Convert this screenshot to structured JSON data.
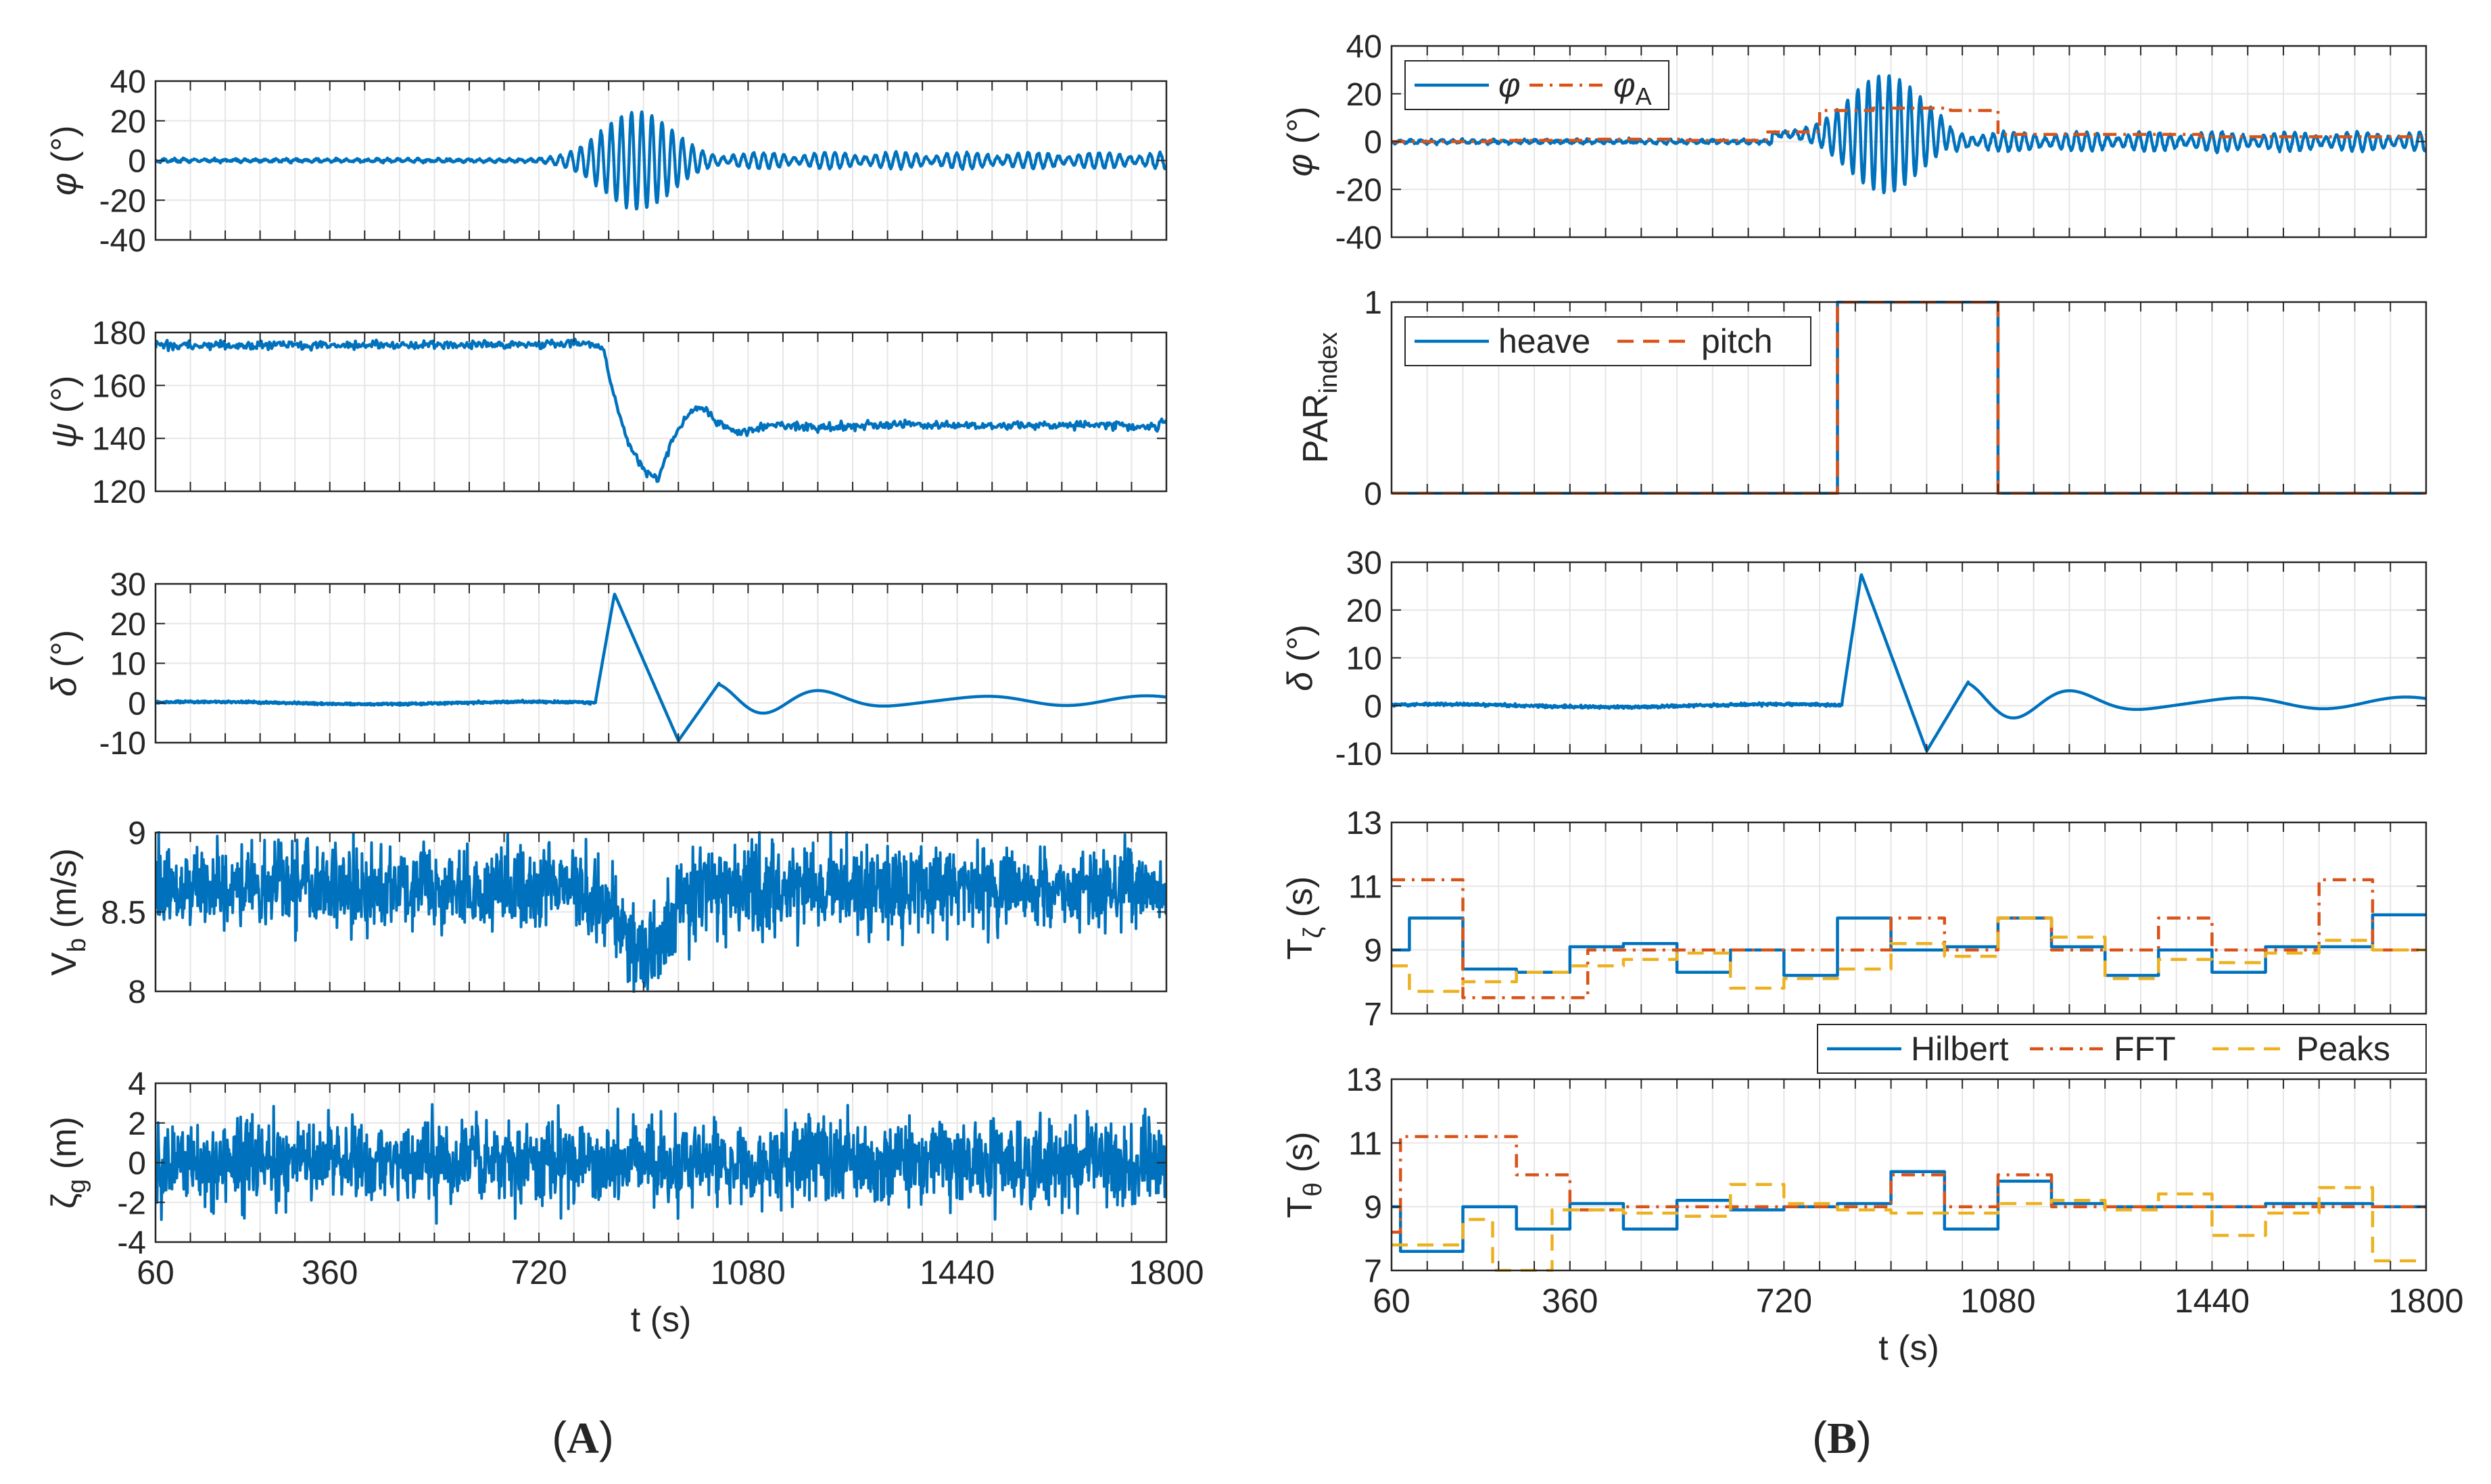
{
  "figure": {
    "panel_labels": {
      "left": "A",
      "right": "B"
    },
    "colors": {
      "blue": "#0072BD",
      "orange": "#D95319",
      "yellow": "#EDB120",
      "axis": "#262626",
      "grid": "#e6e6e6"
    }
  },
  "chart_data": [
    {
      "id": "A1",
      "type": "line",
      "ylabel": "φ (°)",
      "xlim": [
        60,
        1800
      ],
      "ylim": [
        -40,
        40
      ],
      "yticks": [
        -40,
        -20,
        0,
        20,
        40
      ],
      "xticks": [
        60,
        360,
        720,
        1080,
        1440,
        1800
      ],
      "show_xtick_labels": false,
      "series": [
        {
          "name": "φ",
          "color": "#0072BD",
          "style": "solid",
          "shape": "roll_left"
        }
      ]
    },
    {
      "id": "A2",
      "type": "line",
      "ylabel": "ψ (°)",
      "xlim": [
        60,
        1800
      ],
      "ylim": [
        120,
        180
      ],
      "yticks": [
        120,
        140,
        160,
        180
      ],
      "xticks": [
        60,
        360,
        720,
        1080,
        1440,
        1800
      ],
      "show_xtick_labels": false,
      "series": [
        {
          "name": "ψ",
          "color": "#0072BD",
          "style": "solid",
          "points": [
            [
              60,
              175
            ],
            [
              760,
              175.5
            ],
            [
              800,
              176
            ],
            [
              830,
              174
            ],
            [
              845,
              160
            ],
            [
              870,
              140
            ],
            [
              900,
              128
            ],
            [
              925,
              124
            ],
            [
              950,
              140
            ],
            [
              980,
              150
            ],
            [
              1000,
              152
            ],
            [
              1030,
              146
            ],
            [
              1060,
              142
            ],
            [
              1080,
              143
            ],
            [
              1120,
              145
            ],
            [
              1200,
              144
            ],
            [
              1300,
              145
            ],
            [
              1400,
              145
            ],
            [
              1500,
              144.5
            ],
            [
              1600,
              145
            ],
            [
              1700,
              145
            ],
            [
              1780,
              144
            ],
            [
              1800,
              147
            ]
          ],
          "noise": 0.8
        }
      ]
    },
    {
      "id": "A3",
      "type": "line",
      "ylabel": "δ (°)",
      "xlim": [
        60,
        1800
      ],
      "ylim": [
        -10,
        30
      ],
      "yticks": [
        -10,
        0,
        10,
        20,
        30
      ],
      "xticks": [
        60,
        360,
        720,
        1080,
        1440,
        1800
      ],
      "show_xtick_labels": false,
      "series": [
        {
          "name": "δ",
          "color": "#0072BD",
          "style": "solid",
          "shape": "rudder"
        }
      ]
    },
    {
      "id": "A4",
      "type": "line",
      "ylabel": "Vb (m/s)",
      "xlim": [
        60,
        1800
      ],
      "ylim": [
        8,
        9
      ],
      "yticks": [
        8,
        8.5,
        9
      ],
      "xticks": [
        60,
        360,
        720,
        1080,
        1440,
        1800
      ],
      "show_xtick_labels": false,
      "series": [
        {
          "name": "Vb",
          "color": "#0072BD",
          "style": "solid",
          "shape": "speed"
        }
      ]
    },
    {
      "id": "A5",
      "type": "line",
      "ylabel": "ζg (m)",
      "xlim": [
        60,
        1800
      ],
      "ylim": [
        -4,
        4
      ],
      "yticks": [
        -4,
        -2,
        0,
        2,
        4
      ],
      "xticks": [
        60,
        360,
        720,
        1080,
        1440,
        1800
      ],
      "show_xtick_labels": true,
      "xtick_labels": [
        "60",
        "360",
        "720",
        "1080",
        "1440",
        "1800"
      ],
      "xlabel": "t (s)",
      "series": [
        {
          "name": "ζg",
          "color": "#0072BD",
          "style": "solid",
          "shape": "waves"
        }
      ]
    },
    {
      "id": "B1",
      "type": "line",
      "ylabel": "φ (°)",
      "xlim": [
        60,
        1800
      ],
      "ylim": [
        -40,
        40
      ],
      "yticks": [
        -40,
        -20,
        0,
        20,
        40
      ],
      "xticks": [
        60,
        360,
        720,
        1080,
        1440,
        1800
      ],
      "show_xtick_labels": false,
      "legend": {
        "position": "top-left",
        "entries": [
          {
            "label": "φ",
            "sub": "",
            "color": "#0072BD",
            "style": "solid"
          },
          {
            "label": "φ",
            "sub": "A",
            "color": "#D95319",
            "style": "dashdot"
          }
        ]
      },
      "series": [
        {
          "name": "φ",
          "color": "#0072BD",
          "style": "solid",
          "shape": "roll_right"
        },
        {
          "name": "φA",
          "color": "#D95319",
          "style": "dashdot",
          "steps": [
            [
              60,
              0
            ],
            [
              225,
              0.5
            ],
            [
              390,
              1
            ],
            [
              555,
              0.5
            ],
            [
              690,
              4
            ],
            [
              780,
              13
            ],
            [
              870,
              14
            ],
            [
              1000,
              13
            ],
            [
              1080,
              3
            ],
            [
              1240,
              3
            ],
            [
              1420,
              2
            ],
            [
              1600,
              2
            ],
            [
              1800,
              3
            ]
          ]
        }
      ]
    },
    {
      "id": "B2",
      "type": "line",
      "ylabel": "PARindex",
      "xlim": [
        60,
        1800
      ],
      "ylim": [
        0,
        1
      ],
      "yticks": [
        0,
        1
      ],
      "xticks": [
        60,
        360,
        720,
        1080,
        1440,
        1800
      ],
      "show_xtick_labels": false,
      "legend": {
        "position": "top-left",
        "entries": [
          {
            "label": "heave",
            "sub": "",
            "color": "#0072BD",
            "style": "solid"
          },
          {
            "label": "pitch",
            "sub": "",
            "color": "#D95319",
            "style": "dashed"
          }
        ]
      },
      "series": [
        {
          "name": "heave",
          "color": "#0072BD",
          "style": "solid",
          "steps": [
            [
              60,
              0
            ],
            [
              810,
              1
            ],
            [
              1080,
              0
            ],
            [
              1800,
              0
            ]
          ]
        },
        {
          "name": "pitch",
          "color": "#D95319",
          "style": "dashed",
          "steps": [
            [
              60,
              0
            ],
            [
              810,
              1
            ],
            [
              1080,
              0
            ],
            [
              1800,
              0
            ]
          ]
        }
      ]
    },
    {
      "id": "B3",
      "type": "line",
      "ylabel": "δ (°)",
      "xlim": [
        60,
        1800
      ],
      "ylim": [
        -10,
        30
      ],
      "yticks": [
        -10,
        0,
        10,
        20,
        30
      ],
      "xticks": [
        60,
        360,
        720,
        1080,
        1440,
        1800
      ],
      "show_xtick_labels": false,
      "series": [
        {
          "name": "δ",
          "color": "#0072BD",
          "style": "solid",
          "shape": "rudder"
        }
      ]
    },
    {
      "id": "B4",
      "type": "line",
      "ylabel": "Tζ (s)",
      "xlim": [
        60,
        1800
      ],
      "ylim": [
        7,
        13
      ],
      "yticks": [
        7,
        9,
        11,
        13
      ],
      "xticks": [
        60,
        360,
        720,
        1080,
        1440,
        1800
      ],
      "show_xtick_labels": false,
      "legend_below": {
        "entries": [
          {
            "label": "Hilbert",
            "color": "#0072BD",
            "style": "solid"
          },
          {
            "label": "FFT",
            "color": "#D95319",
            "style": "dashdot"
          },
          {
            "label": "Peaks",
            "color": "#EDB120",
            "style": "dashed"
          }
        ]
      },
      "series": [
        {
          "name": "Hilbert",
          "color": "#0072BD",
          "style": "solid",
          "steps": [
            [
              60,
              9
            ],
            [
              90,
              10
            ],
            [
              180,
              8.4
            ],
            [
              270,
              8.3
            ],
            [
              360,
              9.1
            ],
            [
              450,
              9.2
            ],
            [
              540,
              8.3
            ],
            [
              630,
              9
            ],
            [
              720,
              8.2
            ],
            [
              810,
              10
            ],
            [
              900,
              9
            ],
            [
              990,
              9.1
            ],
            [
              1080,
              10
            ],
            [
              1170,
              9.1
            ],
            [
              1260,
              8.2
            ],
            [
              1350,
              9
            ],
            [
              1440,
              8.3
            ],
            [
              1530,
              9.1
            ],
            [
              1620,
              9.1
            ],
            [
              1710,
              10.1
            ],
            [
              1800,
              10.1
            ]
          ]
        },
        {
          "name": "FFT",
          "color": "#D95319",
          "style": "dashdot",
          "steps": [
            [
              60,
              11.2
            ],
            [
              180,
              7.5
            ],
            [
              390,
              9
            ],
            [
              630,
              9
            ],
            [
              720,
              9
            ],
            [
              810,
              9
            ],
            [
              900,
              10
            ],
            [
              990,
              9
            ],
            [
              1080,
              10
            ],
            [
              1170,
              9
            ],
            [
              1260,
              9
            ],
            [
              1350,
              10
            ],
            [
              1440,
              9
            ],
            [
              1530,
              9
            ],
            [
              1620,
              11.2
            ],
            [
              1710,
              9
            ],
            [
              1800,
              9
            ]
          ]
        },
        {
          "name": "Peaks",
          "color": "#EDB120",
          "style": "dashed",
          "steps": [
            [
              60,
              8.5
            ],
            [
              90,
              7.7
            ],
            [
              180,
              8
            ],
            [
              270,
              8.3
            ],
            [
              360,
              8.5
            ],
            [
              450,
              8.7
            ],
            [
              540,
              8.9
            ],
            [
              630,
              7.8
            ],
            [
              720,
              8.1
            ],
            [
              810,
              8.4
            ],
            [
              900,
              9.2
            ],
            [
              990,
              8.8
            ],
            [
              1080,
              10
            ],
            [
              1170,
              9.4
            ],
            [
              1260,
              8.1
            ],
            [
              1350,
              8.7
            ],
            [
              1440,
              8.6
            ],
            [
              1530,
              8.9
            ],
            [
              1620,
              9.3
            ],
            [
              1710,
              9
            ],
            [
              1800,
              9
            ]
          ]
        }
      ]
    },
    {
      "id": "B5",
      "type": "line",
      "ylabel": "Tθ (s)",
      "xlim": [
        60,
        1800
      ],
      "ylim": [
        7,
        13
      ],
      "yticks": [
        7,
        9,
        11,
        13
      ],
      "xticks": [
        60,
        360,
        720,
        1080,
        1440,
        1800
      ],
      "show_xtick_labels": true,
      "xtick_labels": [
        "60",
        "360",
        "720",
        "1080",
        "1440",
        "1800"
      ],
      "xlabel": "t (s)",
      "series": [
        {
          "name": "Hilbert",
          "color": "#0072BD",
          "style": "solid",
          "steps": [
            [
              60,
              9
            ],
            [
              75,
              7.6
            ],
            [
              180,
              9
            ],
            [
              270,
              8.3
            ],
            [
              360,
              9.1
            ],
            [
              450,
              8.3
            ],
            [
              540,
              9.2
            ],
            [
              630,
              8.9
            ],
            [
              720,
              9
            ],
            [
              810,
              9.1
            ],
            [
              900,
              10.1
            ],
            [
              990,
              8.3
            ],
            [
              1080,
              9.8
            ],
            [
              1170,
              9.1
            ],
            [
              1260,
              9
            ],
            [
              1350,
              9
            ],
            [
              1440,
              9
            ],
            [
              1530,
              9.1
            ],
            [
              1620,
              9.1
            ],
            [
              1710,
              9
            ],
            [
              1800,
              9
            ]
          ]
        },
        {
          "name": "FFT",
          "color": "#D95319",
          "style": "dashdot",
          "steps": [
            [
              60,
              8.2
            ],
            [
              75,
              11.2
            ],
            [
              270,
              10
            ],
            [
              360,
              8.9
            ],
            [
              450,
              9
            ],
            [
              540,
              9
            ],
            [
              630,
              9
            ],
            [
              720,
              9
            ],
            [
              810,
              9
            ],
            [
              900,
              10
            ],
            [
              990,
              9
            ],
            [
              1080,
              10
            ],
            [
              1170,
              9
            ],
            [
              1260,
              9
            ],
            [
              1350,
              9
            ],
            [
              1440,
              9
            ],
            [
              1530,
              9
            ],
            [
              1620,
              9
            ],
            [
              1710,
              9
            ],
            [
              1800,
              9
            ]
          ]
        },
        {
          "name": "Peaks",
          "color": "#EDB120",
          "style": "dashed",
          "steps": [
            [
              60,
              7.8
            ],
            [
              90,
              7.8
            ],
            [
              180,
              8.6
            ],
            [
              230,
              7
            ],
            [
              270,
              7
            ],
            [
              330,
              8.9
            ],
            [
              450,
              8.8
            ],
            [
              540,
              8.7
            ],
            [
              630,
              9.7
            ],
            [
              720,
              9.1
            ],
            [
              810,
              8.9
            ],
            [
              900,
              8.8
            ],
            [
              990,
              8.8
            ],
            [
              1080,
              9.1
            ],
            [
              1170,
              9.2
            ],
            [
              1260,
              8.9
            ],
            [
              1350,
              9.4
            ],
            [
              1440,
              8.1
            ],
            [
              1530,
              8.8
            ],
            [
              1620,
              9.6
            ],
            [
              1710,
              7.3
            ],
            [
              1800,
              7.3
            ]
          ]
        }
      ]
    }
  ]
}
